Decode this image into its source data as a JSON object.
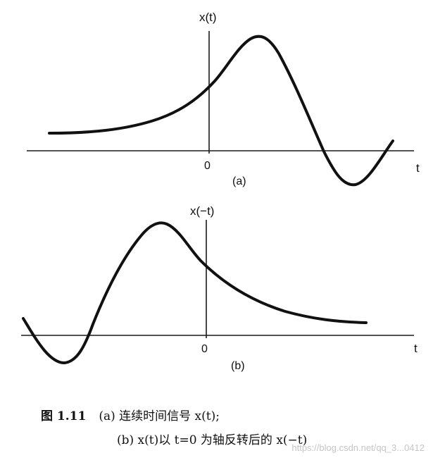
{
  "panel_a": {
    "ylabel": "x(t)",
    "xlabel": "t",
    "origin_label": "0",
    "panel_label": "(a)"
  },
  "panel_b": {
    "ylabel": "x(−t)",
    "xlabel": "t",
    "origin_label": "0",
    "panel_label": "(b)"
  },
  "caption": {
    "figure_number": "图 1.11",
    "line1": "(a) 连续时间信号 x(t);",
    "line2": "(b) x(t)以 t=0 为轴反转后的 x(−t)"
  },
  "watermark": "https://blog.csdn.net/qq_3...0412",
  "colors": {
    "ink": "#111111",
    "background": "#ffffff"
  }
}
